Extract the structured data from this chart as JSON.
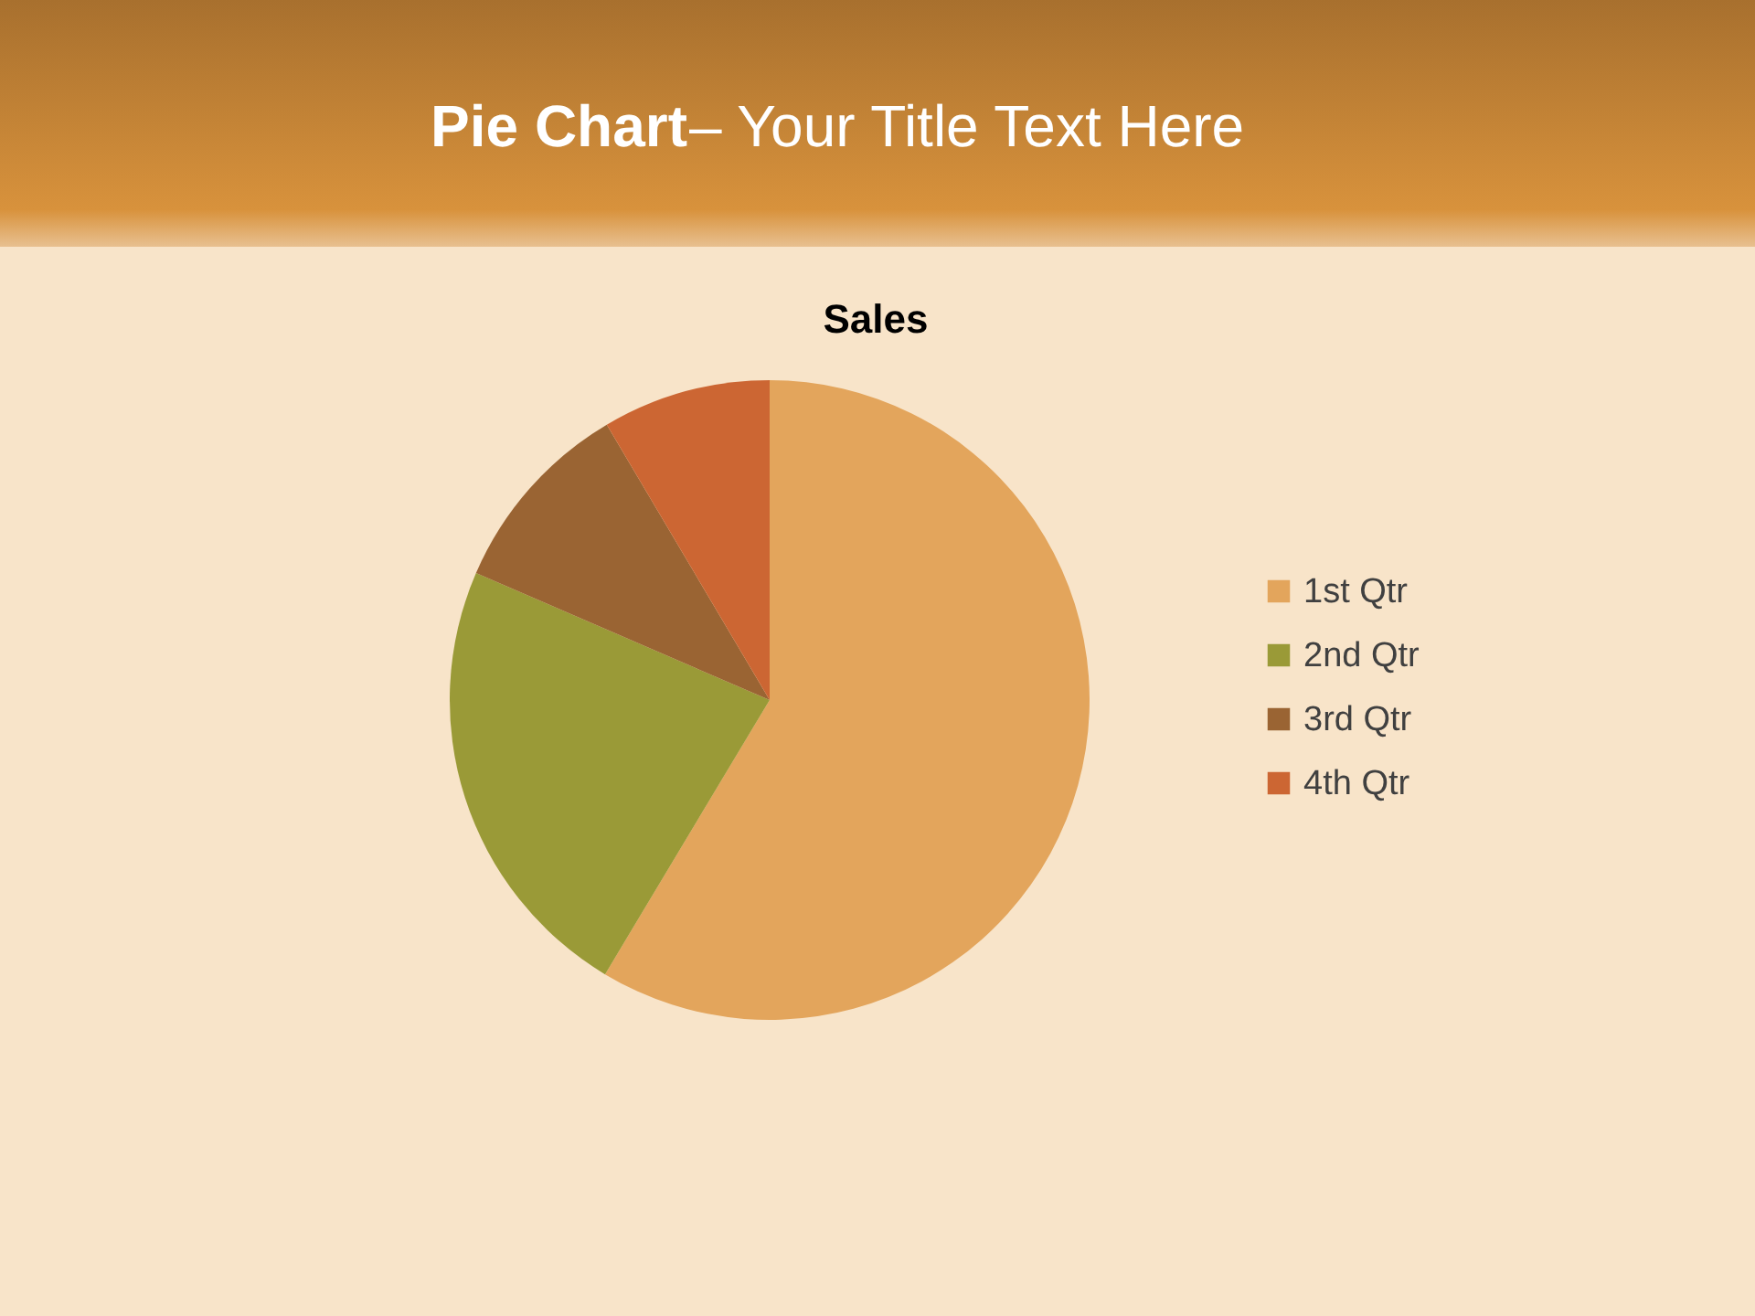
{
  "chart_data": {
    "type": "pie",
    "title": "Pie Chart– Your Title Text Here",
    "subtitle": "Sales",
    "categories": [
      "1st Qtr",
      "2nd Qtr",
      "3rd Qtr",
      "4th Qtr"
    ],
    "values": [
      58.6,
      22.9,
      10.0,
      8.5
    ],
    "colors": [
      "#e3a55c",
      "#9a9a37",
      "#9a6433",
      "#cc6633"
    ],
    "legend": "right"
  }
}
